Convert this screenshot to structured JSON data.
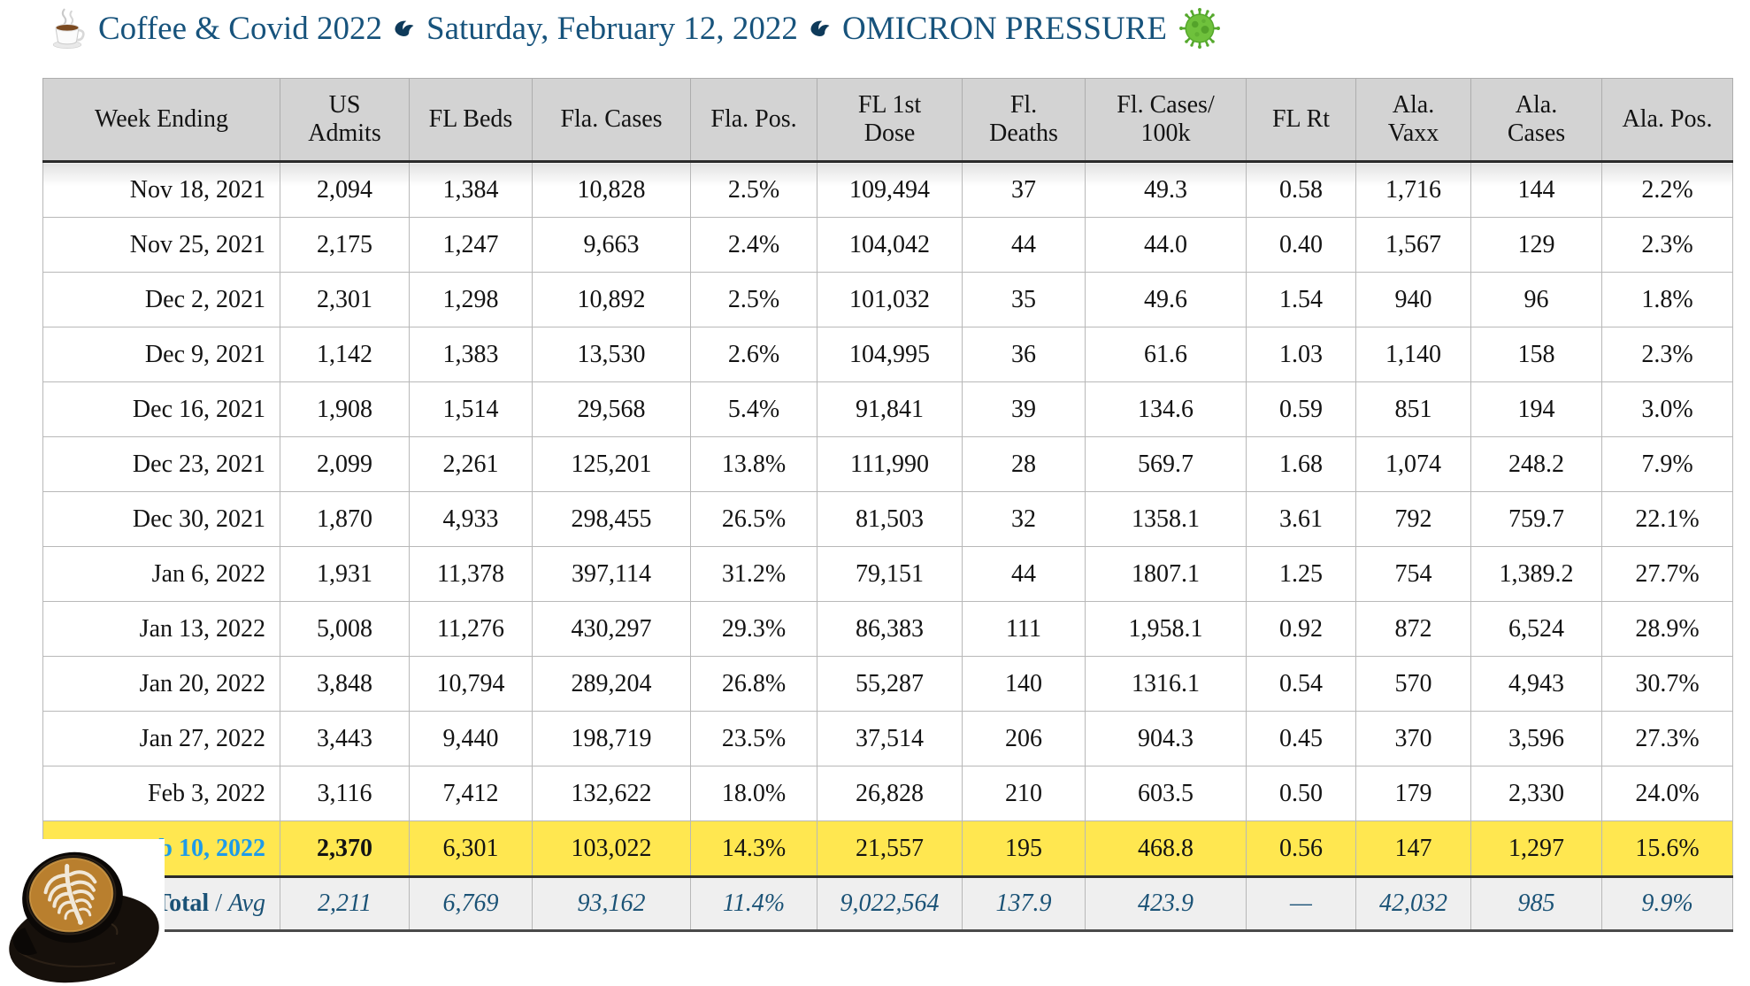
{
  "title": {
    "icon_left": "coffee-cup-icon",
    "segment1": "Coffee & Covid 2022",
    "separator_icon": "leaf-bullet-icon",
    "segment2": "Saturday, February 12, 2022",
    "segment3": "OMICRON PRESSURE",
    "icon_right": "virus-icon"
  },
  "colors": {
    "title_blue": "#17537C",
    "highlight_yellow": "#FFE750",
    "highlight_date_blue": "#1E9BE9",
    "header_gray": "#D3D3D3",
    "total_row_gray": "#EFEFEF",
    "total_text_blue": "#1A5276"
  },
  "table": {
    "columns": [
      [
        "Week Ending"
      ],
      [
        "US",
        "Admits"
      ],
      [
        "FL Beds"
      ],
      [
        "Fla. Cases"
      ],
      [
        "Fla. Pos."
      ],
      [
        "FL 1st",
        "Dose"
      ],
      [
        "Fl.",
        "Deaths"
      ],
      [
        "Fl. Cases/",
        "100k"
      ],
      [
        "FL Rt"
      ],
      [
        "Ala.",
        "Vaxx"
      ],
      [
        "Ala.",
        "Cases"
      ],
      [
        "Ala. Pos."
      ]
    ],
    "rows": [
      {
        "cells": [
          "Nov 18, 2021",
          "2,094",
          "1,384",
          "10,828",
          "2.5%",
          "109,494",
          "37",
          "49.3",
          "0.58",
          "1,716",
          "144",
          "2.2%"
        ]
      },
      {
        "cells": [
          "Nov 25, 2021",
          "2,175",
          "1,247",
          "9,663",
          "2.4%",
          "104,042",
          "44",
          "44.0",
          "0.40",
          "1,567",
          "129",
          "2.3%"
        ]
      },
      {
        "cells": [
          "Dec 2, 2021",
          "2,301",
          "1,298",
          "10,892",
          "2.5%",
          "101,032",
          "35",
          "49.6",
          "1.54",
          "940",
          "96",
          "1.8%"
        ]
      },
      {
        "cells": [
          "Dec 9, 2021",
          "1,142",
          "1,383",
          "13,530",
          "2.6%",
          "104,995",
          "36",
          "61.6",
          "1.03",
          "1,140",
          "158",
          "2.3%"
        ]
      },
      {
        "cells": [
          "Dec 16, 2021",
          "1,908",
          "1,514",
          "29,568",
          "5.4%",
          "91,841",
          "39",
          "134.6",
          "0.59",
          "851",
          "194",
          "3.0%"
        ]
      },
      {
        "cells": [
          "Dec 23, 2021",
          "2,099",
          "2,261",
          "125,201",
          "13.8%",
          "111,990",
          "28",
          "569.7",
          "1.68",
          "1,074",
          "248.2",
          "7.9%"
        ]
      },
      {
        "cells": [
          "Dec 30, 2021",
          "1,870",
          "4,933",
          "298,455",
          "26.5%",
          "81,503",
          "32",
          "1358.1",
          "3.61",
          "792",
          "759.7",
          "22.1%"
        ]
      },
      {
        "cells": [
          "Jan 6, 2022",
          "1,931",
          "11,378",
          "397,114",
          "31.2%",
          "79,151",
          "44",
          "1807.1",
          "1.25",
          "754",
          "1,389.2",
          "27.7%"
        ]
      },
      {
        "cells": [
          "Jan 13, 2022",
          "5,008",
          "11,276",
          "430,297",
          "29.3%",
          "86,383",
          "111",
          "1,958.1",
          "0.92",
          "872",
          "6,524",
          "28.9%"
        ]
      },
      {
        "cells": [
          "Jan 20, 2022",
          "3,848",
          "10,794",
          "289,204",
          "26.8%",
          "55,287",
          "140",
          "1316.1",
          "0.54",
          "570",
          "4,943",
          "30.7%"
        ]
      },
      {
        "cells": [
          "Jan 27, 2022",
          "3,443",
          "9,440",
          "198,719",
          "23.5%",
          "37,514",
          "206",
          "904.3",
          "0.45",
          "370",
          "3,596",
          "27.3%"
        ]
      },
      {
        "cells": [
          "Feb 3, 2022",
          "3,116",
          "7,412",
          "132,622",
          "18.0%",
          "26,828",
          "210",
          "603.5",
          "0.50",
          "179",
          "2,330",
          "24.0%"
        ]
      },
      {
        "cells": [
          "Feb 10, 2022",
          "2,370",
          "6,301",
          "103,022",
          "14.3%",
          "21,557",
          "195",
          "468.8",
          "0.56",
          "147",
          "1,297",
          "15.6%"
        ],
        "highlight": true
      }
    ],
    "total": {
      "label_main": "Total",
      "label_divider": " / ",
      "label_secondary": "Avg",
      "values": [
        "2,211",
        "6,769",
        "93,162",
        "11.4%",
        "9,022,564",
        "137.9",
        "423.9",
        "—",
        "42,032",
        "985",
        "9.9%"
      ]
    }
  }
}
